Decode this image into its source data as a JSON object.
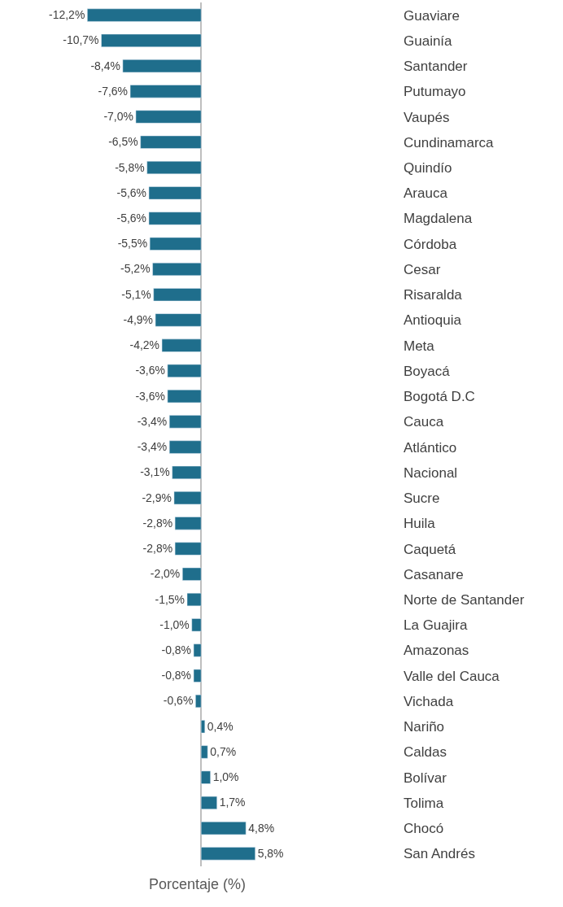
{
  "chart_data": {
    "type": "bar",
    "orientation": "horizontal",
    "xlabel": "Porcentaje (%)",
    "categories": [
      "Guaviare",
      "Guainía",
      "Santander",
      "Putumayo",
      "Vaupés",
      "Cundinamarca",
      "Quindío",
      "Arauca",
      "Magdalena",
      "Córdoba",
      "Cesar",
      "Risaralda",
      "Antioquia",
      "Meta",
      "Boyacá",
      "Bogotá D.C",
      "Cauca",
      "Atlántico",
      "Nacional",
      "Sucre",
      "Huila",
      "Caquetá",
      "Casanare",
      "Norte de Santander",
      "La Guajira",
      "Amazonas",
      "Valle del Cauca",
      "Vichada",
      "Nariño",
      "Caldas",
      "Bolívar",
      "Tolima",
      "Chocó",
      "San Andrés"
    ],
    "values": [
      -12.2,
      -10.7,
      -8.4,
      -7.6,
      -7.0,
      -6.5,
      -5.8,
      -5.6,
      -5.6,
      -5.5,
      -5.2,
      -5.1,
      -4.9,
      -4.2,
      -3.6,
      -3.6,
      -3.4,
      -3.4,
      -3.1,
      -2.9,
      -2.8,
      -2.8,
      -2.0,
      -1.5,
      -1.0,
      -0.8,
      -0.8,
      -0.6,
      0.4,
      0.7,
      1.0,
      1.7,
      4.8,
      5.8
    ],
    "value_labels": [
      "-12,2%",
      "-10,7%",
      "-8,4%",
      "-7,6%",
      "-7,0%",
      "-6,5%",
      "-5,8%",
      "-5,6%",
      "-5,6%",
      "-5,5%",
      "-5,2%",
      "-5,1%",
      "-4,9%",
      "-4,2%",
      "-3,6%",
      "-3,6%",
      "-3,4%",
      "-3,4%",
      "-3,1%",
      "-2,9%",
      "-2,8%",
      "-2,8%",
      "-2,0%",
      "-1,5%",
      "-1,0%",
      "-0,8%",
      "-0,8%",
      "-0,6%",
      "0,4%",
      "0,7%",
      "1,0%",
      "1,7%",
      "4,8%",
      "5,8%"
    ],
    "color": "#1f6e8c",
    "tick_labels": "y"
  }
}
